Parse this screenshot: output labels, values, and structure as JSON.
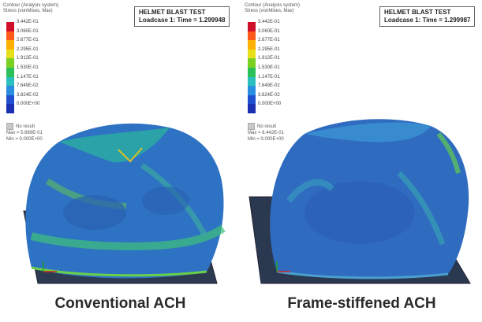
{
  "panels": [
    {
      "contour_header": "Contour (Analysis system)\nStress (vonMises, Max)",
      "title_line1": "HELMET BLAST TEST",
      "title_line2": "Loadcase 1:  Time = 1.299948",
      "legend_values": [
        "3.442E-01",
        "3.060E-01",
        "2.677E-01",
        "2.295E-01",
        "1.912E-01",
        "1.530E-01",
        "1.147E-01",
        "7.649E-02",
        "3.824E-02",
        "0.000E+00"
      ],
      "no_result": "No result",
      "max_text": "Max = 5.669E-01",
      "min_text": "Min = 0.000E+00",
      "caption": "Conventional ACH"
    },
    {
      "contour_header": "Contour (Analysis system)\nStress (vonMises, Max)",
      "title_line1": "HELMET BLAST TEST",
      "title_line2": "Loadcase 1:  Time = 1.299987",
      "legend_values": [
        "3.442E-01",
        "3.060E-01",
        "2.677E-01",
        "2.295E-01",
        "1.912E-01",
        "1.530E-01",
        "1.147E-01",
        "7.649E-02",
        "3.824E-02",
        "0.000E+00"
      ],
      "no_result": "No result",
      "max_text": "Max = 6.442E-01",
      "min_text": "Min = 0.000E+00",
      "caption": "Frame-stiffened ACH"
    }
  ],
  "legend_colors": [
    "#d0102a",
    "#ff5a1a",
    "#ffb000",
    "#e6e01a",
    "#7ad020",
    "#2cc05a",
    "#2bbfbf",
    "#2a8ee0",
    "#2050d0",
    "#1a30b0"
  ]
}
